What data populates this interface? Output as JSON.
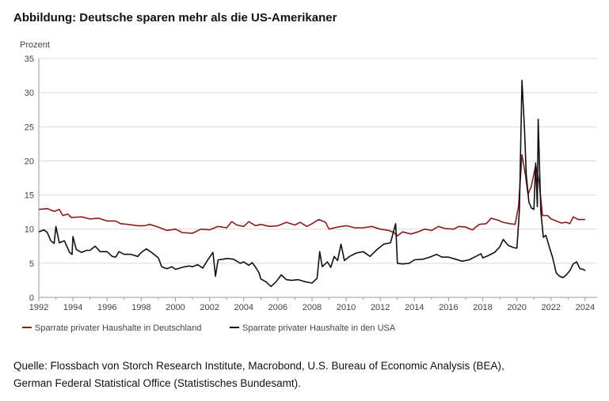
{
  "title": "Abbildung: Deutsche sparen mehr als die US-Amerikaner",
  "source": {
    "line1": "Quelle: Flossbach von Storch Research Institute, Macrobond, U.S. Bureau of Economic Analysis (BEA),",
    "line2": "German Federal Statistical Office (Statistisches Bundesamt)."
  },
  "colors": {
    "germany": "#8b1a1a",
    "usa": "#111111",
    "grid": "#d9d9d9",
    "axis": "#999999"
  },
  "chart_data": {
    "type": "line",
    "title": "Abbildung: Deutsche sparen mehr als die US-Amerikaner",
    "ylabel": "Prozent",
    "xlabel": "",
    "xlim": [
      1992,
      2024.7
    ],
    "ylim": [
      0,
      35
    ],
    "yticks": [
      0,
      5,
      10,
      15,
      20,
      25,
      30,
      35
    ],
    "xticks": [
      1992,
      1994,
      1996,
      1998,
      2000,
      2002,
      2004,
      2006,
      2008,
      2010,
      2012,
      2014,
      2016,
      2018,
      2020,
      2022,
      2024
    ],
    "grid": "horizontal",
    "legend_position": "bottom",
    "series": [
      {
        "name": "Sparrate privater Haushalte in Deutschland",
        "color": "#8b1a1a",
        "points": [
          [
            1992.0,
            12.9
          ],
          [
            1992.5,
            13.0
          ],
          [
            1992.9,
            12.6
          ],
          [
            1993.2,
            12.9
          ],
          [
            1993.4,
            12.0
          ],
          [
            1993.7,
            12.2
          ],
          [
            1993.9,
            11.7
          ],
          [
            1994.5,
            11.8
          ],
          [
            1995.0,
            11.5
          ],
          [
            1995.5,
            11.6
          ],
          [
            1996.0,
            11.2
          ],
          [
            1996.5,
            11.2
          ],
          [
            1996.8,
            10.8
          ],
          [
            1997.2,
            10.7
          ],
          [
            1997.8,
            10.5
          ],
          [
            1998.2,
            10.5
          ],
          [
            1998.5,
            10.7
          ],
          [
            1999.0,
            10.3
          ],
          [
            1999.5,
            9.8
          ],
          [
            2000.0,
            10.0
          ],
          [
            2000.4,
            9.5
          ],
          [
            2001.0,
            9.4
          ],
          [
            2001.5,
            10.0
          ],
          [
            2002.0,
            9.9
          ],
          [
            2002.5,
            10.4
          ],
          [
            2003.0,
            10.2
          ],
          [
            2003.3,
            11.1
          ],
          [
            2003.6,
            10.6
          ],
          [
            2004.0,
            10.4
          ],
          [
            2004.3,
            11.1
          ],
          [
            2004.7,
            10.5
          ],
          [
            2005.0,
            10.7
          ],
          [
            2005.5,
            10.4
          ],
          [
            2006.0,
            10.5
          ],
          [
            2006.5,
            11.0
          ],
          [
            2007.0,
            10.6
          ],
          [
            2007.3,
            11.0
          ],
          [
            2007.7,
            10.4
          ],
          [
            2008.0,
            10.8
          ],
          [
            2008.4,
            11.4
          ],
          [
            2008.8,
            11.0
          ],
          [
            2009.0,
            10.0
          ],
          [
            2009.5,
            10.3
          ],
          [
            2010.0,
            10.5
          ],
          [
            2010.5,
            10.2
          ],
          [
            2011.0,
            10.2
          ],
          [
            2011.5,
            10.4
          ],
          [
            2012.0,
            10.0
          ],
          [
            2012.5,
            9.8
          ],
          [
            2012.8,
            9.5
          ],
          [
            2013.0,
            9.0
          ],
          [
            2013.3,
            9.6
          ],
          [
            2013.8,
            9.3
          ],
          [
            2014.2,
            9.6
          ],
          [
            2014.6,
            10.0
          ],
          [
            2015.0,
            9.8
          ],
          [
            2015.4,
            10.4
          ],
          [
            2015.8,
            10.1
          ],
          [
            2016.3,
            10.0
          ],
          [
            2016.6,
            10.4
          ],
          [
            2017.0,
            10.3
          ],
          [
            2017.4,
            9.9
          ],
          [
            2017.8,
            10.7
          ],
          [
            2018.2,
            10.8
          ],
          [
            2018.5,
            11.6
          ],
          [
            2018.9,
            11.3
          ],
          [
            2019.2,
            11.0
          ],
          [
            2019.6,
            10.8
          ],
          [
            2019.9,
            10.7
          ],
          [
            2020.1,
            13.4
          ],
          [
            2020.3,
            20.9
          ],
          [
            2020.5,
            18.0
          ],
          [
            2020.65,
            15.1
          ],
          [
            2020.85,
            16.3
          ],
          [
            2021.1,
            19.4
          ],
          [
            2021.3,
            17.0
          ],
          [
            2021.5,
            12.0
          ],
          [
            2021.8,
            12.0
          ],
          [
            2022.0,
            11.5
          ],
          [
            2022.3,
            11.2
          ],
          [
            2022.6,
            10.9
          ],
          [
            2022.9,
            11.0
          ],
          [
            2023.1,
            10.8
          ],
          [
            2023.3,
            11.8
          ],
          [
            2023.6,
            11.4
          ],
          [
            2024.0,
            11.4
          ]
        ]
      },
      {
        "name": "Sparrate privater Haushalte in den USA",
        "color": "#111111",
        "points": [
          [
            1992.0,
            9.6
          ],
          [
            1992.3,
            9.9
          ],
          [
            1992.5,
            9.5
          ],
          [
            1992.7,
            8.3
          ],
          [
            1992.9,
            7.9
          ],
          [
            1993.0,
            10.4
          ],
          [
            1993.2,
            8.0
          ],
          [
            1993.5,
            8.3
          ],
          [
            1993.8,
            6.6
          ],
          [
            1993.95,
            6.3
          ],
          [
            1994.0,
            8.9
          ],
          [
            1994.2,
            7.0
          ],
          [
            1994.5,
            6.6
          ],
          [
            1994.8,
            6.9
          ],
          [
            1995.0,
            6.9
          ],
          [
            1995.3,
            7.5
          ],
          [
            1995.6,
            6.7
          ],
          [
            1996.0,
            6.7
          ],
          [
            1996.3,
            6.0
          ],
          [
            1996.5,
            5.9
          ],
          [
            1996.7,
            6.7
          ],
          [
            1997.0,
            6.3
          ],
          [
            1997.4,
            6.3
          ],
          [
            1997.8,
            6.0
          ],
          [
            1998.0,
            6.6
          ],
          [
            1998.3,
            7.1
          ],
          [
            1998.6,
            6.6
          ],
          [
            1999.0,
            5.8
          ],
          [
            1999.2,
            4.5
          ],
          [
            1999.5,
            4.2
          ],
          [
            1999.8,
            4.5
          ],
          [
            2000.0,
            4.1
          ],
          [
            2000.4,
            4.4
          ],
          [
            2000.8,
            4.6
          ],
          [
            2001.0,
            4.5
          ],
          [
            2001.3,
            4.8
          ],
          [
            2001.6,
            4.3
          ],
          [
            2001.9,
            5.5
          ],
          [
            2002.2,
            6.6
          ],
          [
            2002.35,
            3.1
          ],
          [
            2002.5,
            5.5
          ],
          [
            2002.8,
            5.6
          ],
          [
            2003.0,
            5.7
          ],
          [
            2003.4,
            5.6
          ],
          [
            2003.8,
            5.0
          ],
          [
            2004.0,
            5.2
          ],
          [
            2004.3,
            4.7
          ],
          [
            2004.5,
            5.1
          ],
          [
            2004.7,
            4.4
          ],
          [
            2004.9,
            3.6
          ],
          [
            2005.0,
            2.7
          ],
          [
            2005.3,
            2.3
          ],
          [
            2005.6,
            1.6
          ],
          [
            2005.9,
            2.3
          ],
          [
            2006.2,
            3.3
          ],
          [
            2006.5,
            2.6
          ],
          [
            2006.8,
            2.5
          ],
          [
            2007.2,
            2.6
          ],
          [
            2007.6,
            2.3
          ],
          [
            2008.0,
            2.1
          ],
          [
            2008.3,
            2.8
          ],
          [
            2008.45,
            6.7
          ],
          [
            2008.6,
            4.5
          ],
          [
            2008.9,
            5.2
          ],
          [
            2009.1,
            4.4
          ],
          [
            2009.3,
            6.0
          ],
          [
            2009.5,
            5.4
          ],
          [
            2009.7,
            7.8
          ],
          [
            2009.9,
            5.4
          ],
          [
            2010.2,
            6.0
          ],
          [
            2010.6,
            6.5
          ],
          [
            2011.0,
            6.7
          ],
          [
            2011.4,
            6.0
          ],
          [
            2011.8,
            7.0
          ],
          [
            2012.2,
            7.8
          ],
          [
            2012.6,
            8.0
          ],
          [
            2012.9,
            10.8
          ],
          [
            2013.0,
            5.0
          ],
          [
            2013.3,
            4.9
          ],
          [
            2013.7,
            5.0
          ],
          [
            2014.0,
            5.5
          ],
          [
            2014.5,
            5.6
          ],
          [
            2014.9,
            5.9
          ],
          [
            2015.3,
            6.3
          ],
          [
            2015.6,
            5.9
          ],
          [
            2016.0,
            5.9
          ],
          [
            2016.4,
            5.6
          ],
          [
            2016.8,
            5.3
          ],
          [
            2017.2,
            5.5
          ],
          [
            2017.6,
            6.0
          ],
          [
            2017.9,
            6.4
          ],
          [
            2018.0,
            5.8
          ],
          [
            2018.3,
            6.1
          ],
          [
            2018.7,
            6.6
          ],
          [
            2019.0,
            7.4
          ],
          [
            2019.2,
            8.5
          ],
          [
            2019.5,
            7.6
          ],
          [
            2019.8,
            7.3
          ],
          [
            2020.0,
            7.2
          ],
          [
            2020.15,
            12.8
          ],
          [
            2020.3,
            31.8
          ],
          [
            2020.45,
            24.4
          ],
          [
            2020.55,
            18.0
          ],
          [
            2020.7,
            14.0
          ],
          [
            2020.85,
            13.1
          ],
          [
            2021.0,
            12.9
          ],
          [
            2021.1,
            19.7
          ],
          [
            2021.2,
            13.3
          ],
          [
            2021.25,
            26.1
          ],
          [
            2021.4,
            12.6
          ],
          [
            2021.55,
            8.8
          ],
          [
            2021.7,
            9.1
          ],
          [
            2021.9,
            7.4
          ],
          [
            2022.1,
            5.8
          ],
          [
            2022.3,
            3.6
          ],
          [
            2022.5,
            3.1
          ],
          [
            2022.7,
            2.9
          ],
          [
            2022.9,
            3.3
          ],
          [
            2023.1,
            3.9
          ],
          [
            2023.3,
            4.9
          ],
          [
            2023.5,
            5.2
          ],
          [
            2023.7,
            4.2
          ],
          [
            2023.9,
            4.1
          ],
          [
            2024.0,
            3.9
          ]
        ]
      }
    ]
  }
}
